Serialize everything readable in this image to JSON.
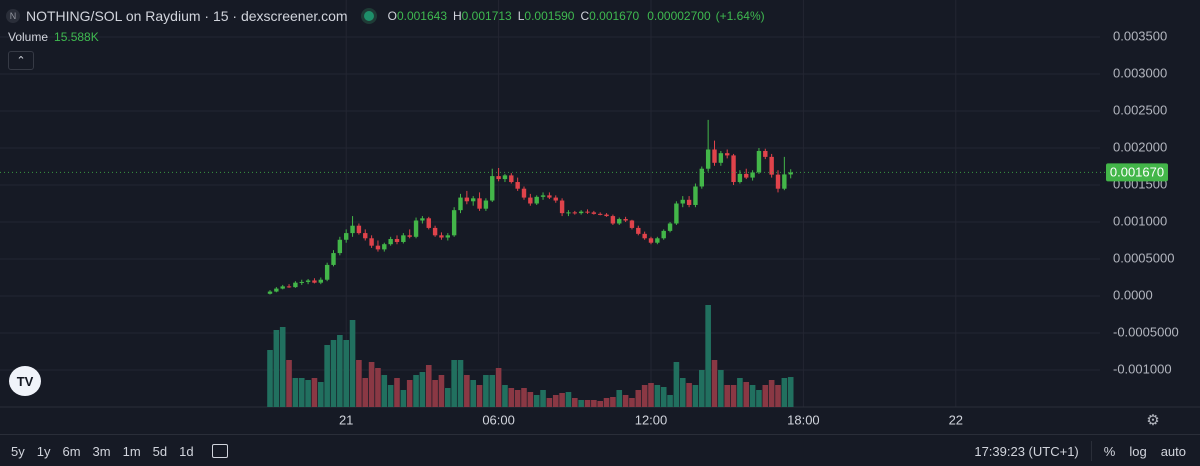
{
  "chart_data": {
    "type": "candlestick",
    "title": "NOTHING/SOL on Raydium · 15 · dexscreener.com",
    "ohlc_legend": [
      {
        "label": "O",
        "value": "0.001643"
      },
      {
        "label": "H",
        "value": "0.001713"
      },
      {
        "label": "L",
        "value": "0.001590"
      },
      {
        "label": "C",
        "value": "0.001670"
      }
    ],
    "change": "0.00002700",
    "change_pct": "(+1.64%)",
    "volume_label": "Volume",
    "volume_value": "15.588K",
    "last_price_label": "0.001670",
    "open": [
      3e-05,
      6e-05,
      0.0001,
      0.00013,
      0.00012,
      0.00018,
      0.00019,
      0.00021,
      0.00018,
      0.00022,
      0.00042,
      0.00058,
      0.00076,
      0.00085,
      0.00095,
      0.00085,
      0.00078,
      0.00068,
      0.00063,
      0.0007,
      0.00077,
      0.00073,
      0.00082,
      0.0008,
      0.00102,
      0.00105,
      0.00092,
      0.00082,
      0.00079,
      0.00082,
      0.00116,
      0.00133,
      0.00128,
      0.00132,
      0.00118,
      0.00129,
      0.00162,
      0.00158,
      0.00163,
      0.00154,
      0.00145,
      0.00133,
      0.00125,
      0.00134,
      0.00136,
      0.00133,
      0.00129,
      0.00112,
      0.00113,
      0.00112,
      0.00114,
      0.00113,
      0.00111,
      0.0011,
      0.00108,
      0.00098,
      0.00104,
      0.00102,
      0.00092,
      0.00084,
      0.00078,
      0.00072,
      0.00078,
      0.00088,
      0.00098,
      0.00125,
      0.0013,
      0.00123,
      0.00148,
      0.00172,
      0.00198,
      0.0018,
      0.00193,
      0.0019,
      0.00154,
      0.00165,
      0.0016,
      0.00167,
      0.00196,
      0.00188,
      0.00164,
      0.00145,
      0.001643
    ],
    "high": [
      8e-05,
      0.00012,
      0.00015,
      0.00016,
      0.0002,
      0.00022,
      0.00023,
      0.00024,
      0.00025,
      0.00045,
      0.00062,
      0.0008,
      0.0009,
      0.00108,
      0.00098,
      0.0009,
      0.00082,
      0.00075,
      0.00072,
      0.0008,
      0.00082,
      0.00085,
      0.0009,
      0.00106,
      0.00108,
      0.00107,
      0.00095,
      0.00086,
      0.00085,
      0.0012,
      0.00138,
      0.00142,
      0.00135,
      0.0014,
      0.00132,
      0.00172,
      0.00173,
      0.00165,
      0.00166,
      0.0016,
      0.00148,
      0.00138,
      0.00136,
      0.0014,
      0.0014,
      0.00136,
      0.00132,
      0.00116,
      0.00115,
      0.00116,
      0.00117,
      0.00115,
      0.00113,
      0.00112,
      0.0011,
      0.00106,
      0.00107,
      0.00103,
      0.00095,
      0.00087,
      0.0008,
      0.0008,
      0.0009,
      0.001,
      0.00128,
      0.00135,
      0.00135,
      0.00152,
      0.00175,
      0.00238,
      0.0021,
      0.00196,
      0.00198,
      0.00192,
      0.0017,
      0.00172,
      0.0017,
      0.002,
      0.00199,
      0.00192,
      0.0017,
      0.00188,
      0.001713
    ],
    "low": [
      2e-05,
      5e-05,
      9e-05,
      0.00011,
      0.00011,
      0.00015,
      0.00016,
      0.00017,
      0.00016,
      0.0002,
      0.0004,
      0.00055,
      0.00072,
      0.0008,
      0.00083,
      0.00075,
      0.00065,
      0.0006,
      0.0006,
      0.00068,
      0.0007,
      0.00071,
      0.00078,
      0.00078,
      0.00098,
      0.0009,
      0.0008,
      0.00076,
      0.00075,
      0.0008,
      0.00112,
      0.00124,
      0.00122,
      0.00115,
      0.00115,
      0.00127,
      0.00155,
      0.00154,
      0.00152,
      0.00142,
      0.0013,
      0.00122,
      0.00123,
      0.0013,
      0.00131,
      0.00126,
      0.00108,
      0.00108,
      0.0011,
      0.0011,
      0.00111,
      0.0011,
      0.00109,
      0.00107,
      0.00096,
      0.00096,
      0.001,
      0.0009,
      0.00082,
      0.00076,
      0.0007,
      0.0007,
      0.00076,
      0.00086,
      0.00096,
      0.0012,
      0.0012,
      0.0012,
      0.00145,
      0.00168,
      0.00176,
      0.00176,
      0.00186,
      0.0015,
      0.00152,
      0.00158,
      0.00156,
      0.00165,
      0.00185,
      0.0016,
      0.0014,
      0.00143,
      0.00159
    ],
    "close": [
      6e-05,
      0.0001,
      0.00013,
      0.00012,
      0.00018,
      0.00019,
      0.00021,
      0.00018,
      0.00022,
      0.00042,
      0.00058,
      0.00076,
      0.00085,
      0.00095,
      0.00085,
      0.00078,
      0.00068,
      0.00063,
      0.0007,
      0.00077,
      0.00073,
      0.00082,
      0.0008,
      0.00102,
      0.00105,
      0.00092,
      0.00082,
      0.00079,
      0.00082,
      0.00116,
      0.00133,
      0.00128,
      0.00132,
      0.00118,
      0.00129,
      0.00162,
      0.00158,
      0.00163,
      0.00154,
      0.00145,
      0.00133,
      0.00125,
      0.00134,
      0.00136,
      0.00133,
      0.00129,
      0.00112,
      0.00113,
      0.00112,
      0.00114,
      0.00113,
      0.00111,
      0.0011,
      0.00108,
      0.00098,
      0.00104,
      0.00102,
      0.00092,
      0.00084,
      0.00078,
      0.00072,
      0.00078,
      0.00088,
      0.00098,
      0.00125,
      0.0013,
      0.00123,
      0.00148,
      0.00172,
      0.00198,
      0.0018,
      0.00193,
      0.0019,
      0.00154,
      0.00165,
      0.0016,
      0.00167,
      0.00196,
      0.00188,
      0.00164,
      0.00145,
      0.001643,
      0.00167
    ],
    "volume": [
      29640,
      40040,
      41600,
      24440,
      15080,
      15080,
      14040,
      15080,
      13000,
      32240,
      34840,
      37440,
      34840,
      45240,
      24440,
      15080,
      23400,
      20280,
      16640,
      11440,
      15080,
      8840,
      14040,
      16640,
      18200,
      21840,
      14040,
      16640,
      9880,
      24440,
      24440,
      16640,
      14040,
      11440,
      16640,
      16640,
      20280,
      11440,
      9880,
      8840,
      9880,
      7800,
      6240,
      8840,
      4680,
      6240,
      7280,
      7800,
      4680,
      3640,
      3640,
      3640,
      3120,
      4680,
      5200,
      8840,
      6240,
      4680,
      8840,
      11440,
      12480,
      11440,
      10400,
      6240,
      23400,
      15080,
      12480,
      11440,
      19240,
      53040,
      24440,
      19240,
      11440,
      11440,
      15080,
      13000,
      11440,
      8840,
      11440,
      14040,
      11440,
      15080,
      15588
    ],
    "ylim": [
      -0.0015,
      0.004
    ],
    "yticks": [
      {
        "value": 0.0035,
        "label": "0.003500"
      },
      {
        "value": 0.003,
        "label": "0.003000"
      },
      {
        "value": 0.0025,
        "label": "0.002500"
      },
      {
        "value": 0.002,
        "label": "0.002000"
      },
      {
        "value": 0.0015,
        "label": "0.001500"
      },
      {
        "value": 0.001,
        "label": "0.001000"
      },
      {
        "value": 0.0005,
        "label": "0.0005000"
      },
      {
        "value": 0,
        "label": "0.0000"
      },
      {
        "value": -0.0005,
        "label": "-0.0005000"
      },
      {
        "value": -0.001,
        "label": "-0.001000"
      }
    ],
    "xticks": [
      {
        "value": 12,
        "label": "21"
      },
      {
        "value": 36,
        "label": "06:00"
      },
      {
        "value": 60,
        "label": "12:00"
      },
      {
        "value": 84,
        "label": "18:00"
      },
      {
        "value": 108,
        "label": "22"
      }
    ],
    "grid": true,
    "up_color": "#43b649",
    "down_color": "#e0434b",
    "volume_up_color": "#21705f",
    "volume_down_color": "#8a3844",
    "price_line_color": "#43b649"
  },
  "toolbar": {
    "ranges": [
      "5y",
      "1y",
      "6m",
      "3m",
      "1m",
      "5d",
      "1d"
    ],
    "clock": "17:39:23 (UTC+1)",
    "options": [
      "%",
      "log",
      "auto"
    ]
  }
}
